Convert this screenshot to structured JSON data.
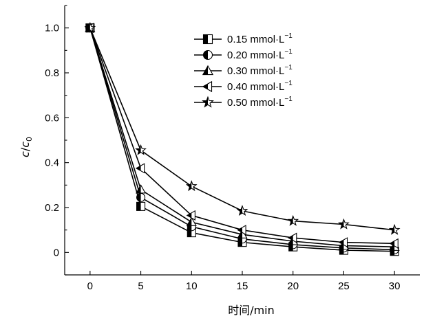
{
  "chart_data": {
    "type": "line",
    "title": "",
    "xlabel": "时间/min",
    "ylabel_main": "c",
    "ylabel_slash": "/",
    "ylabel_sub_base": "c",
    "ylabel_sub": "0",
    "x": [
      0,
      5,
      10,
      15,
      20,
      25,
      30
    ],
    "xlim": [
      -2.5,
      32.5
    ],
    "ylim": [
      -0.1,
      1.1
    ],
    "xticks": [
      "0",
      "5",
      "10",
      "15",
      "20",
      "25",
      "30"
    ],
    "yticks": [
      "0",
      "0.2",
      "0.4",
      "0.6",
      "0.8",
      "1.0"
    ],
    "legend_position": "top-right",
    "series": [
      {
        "name": "0.15 mmol·L",
        "sup": "−1",
        "marker": "square-half",
        "values": [
          1.0,
          0.205,
          0.088,
          0.045,
          0.025,
          0.01,
          0.005
        ]
      },
      {
        "name": "0.20 mmol·L",
        "sup": "−1",
        "marker": "circle-half",
        "values": [
          1.0,
          0.245,
          0.115,
          0.06,
          0.035,
          0.02,
          0.012
        ]
      },
      {
        "name": "0.30 mmol·L",
        "sup": "−1",
        "marker": "triangle-up-half",
        "values": [
          1.0,
          0.28,
          0.135,
          0.08,
          0.05,
          0.03,
          0.025
        ]
      },
      {
        "name": "0.40 mmol·L",
        "sup": "−1",
        "marker": "triangle-left-half",
        "values": [
          1.0,
          0.375,
          0.165,
          0.1,
          0.065,
          0.045,
          0.04
        ]
      },
      {
        "name": "0.50 mmol·L",
        "sup": "−1",
        "marker": "star-half",
        "values": [
          1.0,
          0.455,
          0.295,
          0.185,
          0.14,
          0.125,
          0.1
        ]
      }
    ]
  }
}
